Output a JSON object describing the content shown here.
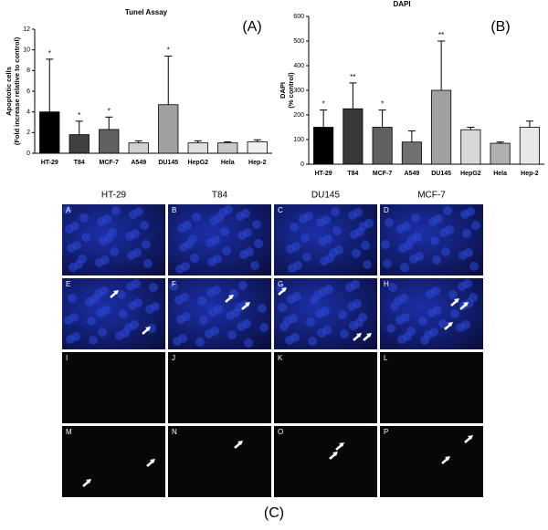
{
  "chart_data": [
    {
      "type": "bar",
      "title": "Tunel Assay",
      "panel_label": "(A)",
      "y_label": [
        "Apoptotic cells",
        "(Fold increase relative to control)"
      ],
      "categories": [
        "HT-29",
        "T84",
        "MCF-7",
        "A549",
        "DU145",
        "HepG2",
        "Hela",
        "Hep-2"
      ],
      "values": [
        4.0,
        1.8,
        2.3,
        1.0,
        4.7,
        1.0,
        1.0,
        1.1
      ],
      "errors": [
        5.1,
        1.3,
        1.2,
        0.2,
        4.7,
        0.2,
        0.1,
        0.2
      ],
      "annotations": [
        "*",
        "*",
        "*",
        null,
        "*",
        null,
        null,
        null
      ],
      "colors": [
        "#000000",
        "#404040",
        "#606060",
        "#d0d0d0",
        "#a0a0a0",
        "#e0e0e0",
        "#c8c8c8",
        "#f0f0f0"
      ],
      "ylim": [
        0,
        12
      ],
      "yticks": [
        0,
        2,
        4,
        6,
        8,
        10,
        12
      ]
    },
    {
      "type": "bar",
      "title": "DAPI",
      "panel_label": "(B)",
      "y_label": [
        "DAPI",
        "(% control)"
      ],
      "categories": [
        "HT-29",
        "T84",
        "MCF-7",
        "A549",
        "DU145",
        "HepG2",
        "Hela",
        "Hep-2"
      ],
      "values": [
        150,
        225,
        150,
        90,
        300,
        140,
        85,
        150
      ],
      "errors": [
        70,
        105,
        70,
        45,
        200,
        10,
        5,
        25
      ],
      "annotations": [
        "*",
        "**",
        "*",
        null,
        "**",
        null,
        null,
        null
      ],
      "colors": [
        "#000000",
        "#383838",
        "#606060",
        "#707070",
        "#a0a0a0",
        "#d8d8d8",
        "#b0b0b0",
        "#e8e8e8"
      ],
      "ylim": [
        0,
        600
      ],
      "yticks": [
        0,
        100,
        200,
        300,
        400,
        500,
        600
      ]
    }
  ],
  "figure_c": {
    "label": "(C)",
    "columns": [
      "HT-29",
      "T84",
      "DU145",
      "MCF-7"
    ],
    "panels": [
      "A",
      "B",
      "C",
      "D",
      "E",
      "F",
      "G",
      "H",
      "I",
      "J",
      "K",
      "L",
      "M",
      "N",
      "O",
      "P"
    ]
  }
}
